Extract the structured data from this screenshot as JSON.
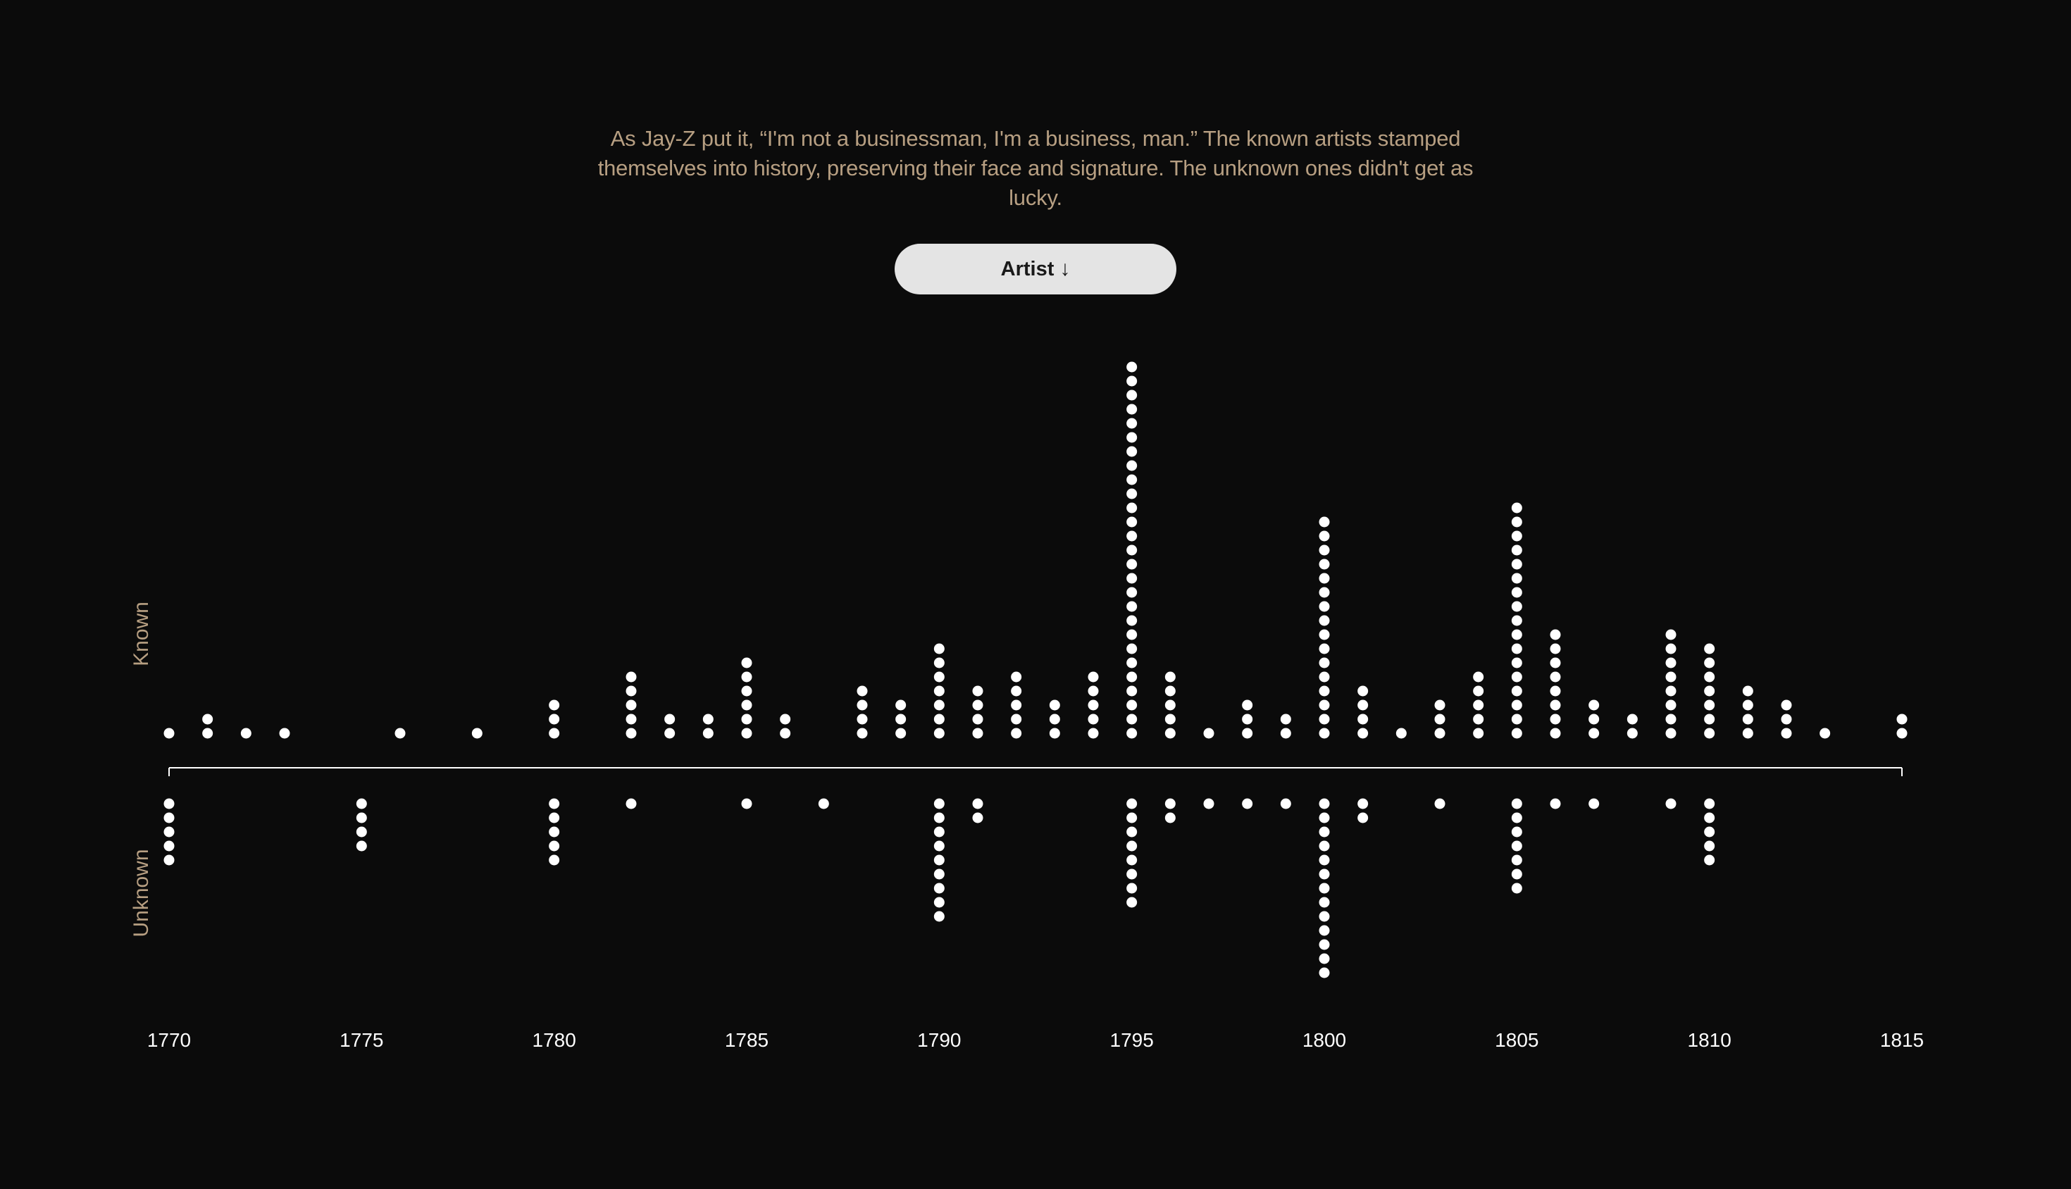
{
  "intro": {
    "text": "As Jay-Z put it, “I'm not a businessman, I'm a business, man.” The known artists stamped themselves into history, preserving their face and signature. The unknown ones didn't get as lucky."
  },
  "sort_button": {
    "label": "Artist",
    "icon": "arrow-down-icon",
    "glyph": "↓"
  },
  "colors": {
    "background": "#0b0b0b",
    "dot": "#ffffff",
    "axis": "#ffffff",
    "text_accent": "#b79f82",
    "tick_text": "#ffffff",
    "button_bg": "#e4e4e4"
  },
  "chart_data": {
    "type": "dot-histogram",
    "group_labels": {
      "known": "Known",
      "unknown": "Unknown"
    },
    "xlim": [
      1770,
      1815
    ],
    "x_ticks": [
      1770,
      1775,
      1780,
      1785,
      1790,
      1795,
      1800,
      1805,
      1810,
      1815
    ],
    "known": [
      {
        "year": 1770,
        "count": 1
      },
      {
        "year": 1771,
        "count": 2
      },
      {
        "year": 1772,
        "count": 1
      },
      {
        "year": 1773,
        "count": 1
      },
      {
        "year": 1776,
        "count": 1
      },
      {
        "year": 1778,
        "count": 1
      },
      {
        "year": 1780,
        "count": 3
      },
      {
        "year": 1782,
        "count": 5
      },
      {
        "year": 1783,
        "count": 2
      },
      {
        "year": 1784,
        "count": 2
      },
      {
        "year": 1785,
        "count": 6
      },
      {
        "year": 1786,
        "count": 2
      },
      {
        "year": 1788,
        "count": 4
      },
      {
        "year": 1789,
        "count": 3
      },
      {
        "year": 1790,
        "count": 7
      },
      {
        "year": 1791,
        "count": 4
      },
      {
        "year": 1792,
        "count": 5
      },
      {
        "year": 1793,
        "count": 3
      },
      {
        "year": 1794,
        "count": 5
      },
      {
        "year": 1795,
        "count": 27
      },
      {
        "year": 1796,
        "count": 5
      },
      {
        "year": 1797,
        "count": 1
      },
      {
        "year": 1798,
        "count": 3
      },
      {
        "year": 1799,
        "count": 2
      },
      {
        "year": 1800,
        "count": 16
      },
      {
        "year": 1801,
        "count": 4
      },
      {
        "year": 1802,
        "count": 1
      },
      {
        "year": 1803,
        "count": 3
      },
      {
        "year": 1804,
        "count": 5
      },
      {
        "year": 1805,
        "count": 17
      },
      {
        "year": 1806,
        "count": 8
      },
      {
        "year": 1807,
        "count": 3
      },
      {
        "year": 1808,
        "count": 2
      },
      {
        "year": 1809,
        "count": 8
      },
      {
        "year": 1810,
        "count": 7
      },
      {
        "year": 1811,
        "count": 4
      },
      {
        "year": 1812,
        "count": 3
      },
      {
        "year": 1813,
        "count": 1
      },
      {
        "year": 1815,
        "count": 2
      }
    ],
    "unknown": [
      {
        "year": 1770,
        "count": 5
      },
      {
        "year": 1775,
        "count": 4
      },
      {
        "year": 1780,
        "count": 5
      },
      {
        "year": 1782,
        "count": 1
      },
      {
        "year": 1785,
        "count": 1
      },
      {
        "year": 1787,
        "count": 1
      },
      {
        "year": 1790,
        "count": 9
      },
      {
        "year": 1791,
        "count": 2
      },
      {
        "year": 1795,
        "count": 8
      },
      {
        "year": 1796,
        "count": 2
      },
      {
        "year": 1797,
        "count": 1
      },
      {
        "year": 1798,
        "count": 1
      },
      {
        "year": 1799,
        "count": 1
      },
      {
        "year": 1800,
        "count": 13
      },
      {
        "year": 1801,
        "count": 2
      },
      {
        "year": 1803,
        "count": 1
      },
      {
        "year": 1805,
        "count": 7
      },
      {
        "year": 1806,
        "count": 1
      },
      {
        "year": 1807,
        "count": 1
      },
      {
        "year": 1809,
        "count": 1
      },
      {
        "year": 1810,
        "count": 5
      }
    ]
  }
}
